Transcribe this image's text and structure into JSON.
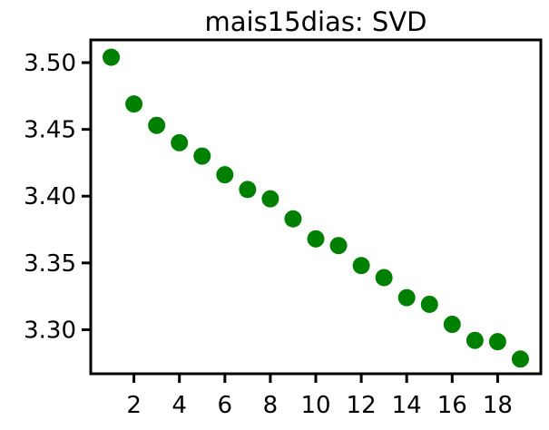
{
  "chart_data": {
    "type": "scatter",
    "title": "mais15dias: SVD",
    "xlabel": "",
    "ylabel": "",
    "xlim": [
      0.1,
      19.9
    ],
    "ylim": [
      3.267,
      3.517
    ],
    "x_ticks": [
      2,
      4,
      6,
      8,
      10,
      12,
      14,
      16,
      18
    ],
    "y_ticks": [
      3.3,
      3.35,
      3.4,
      3.45,
      3.5
    ],
    "y_tick_labels": [
      "3.30",
      "3.35",
      "3.40",
      "3.45",
      "3.50"
    ],
    "grid": false,
    "marker_color": "#008000",
    "series": [
      {
        "x": [
          1,
          2,
          3,
          4,
          5,
          6,
          7,
          8,
          9,
          10,
          11,
          12,
          13,
          14,
          15,
          16,
          17,
          18,
          19
        ],
        "y": [
          3.504,
          3.469,
          3.453,
          3.44,
          3.43,
          3.416,
          3.405,
          3.398,
          3.383,
          3.368,
          3.363,
          3.348,
          3.339,
          3.324,
          3.319,
          3.304,
          3.292,
          3.291,
          3.278
        ]
      }
    ]
  }
}
